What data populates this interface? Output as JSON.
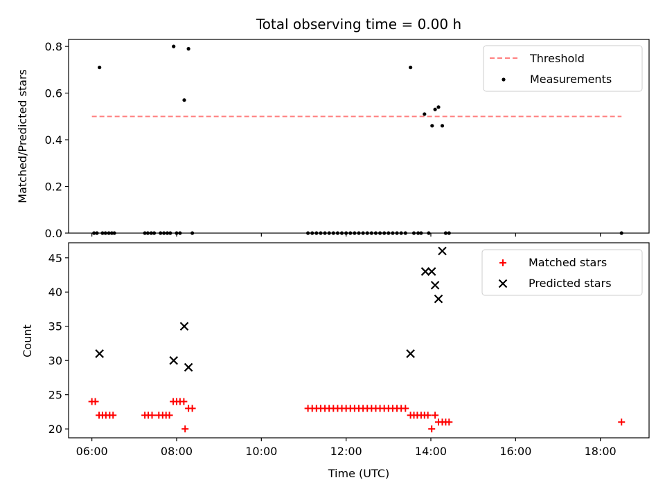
{
  "colors": {
    "threshold": "#ff8080",
    "measurement": "#000000",
    "matched": "#ff0000",
    "predicted": "#000000"
  },
  "chart_data": [
    {
      "type": "scatter",
      "title": "Total observing time = 0.00 h",
      "xlabel": "",
      "ylabel": "Matched/Predicted stars",
      "xlim": [
        5.45,
        19.15
      ],
      "ylim": [
        0.0,
        0.83
      ],
      "x_unit": "hours UTC",
      "x_ticks": [
        6,
        8,
        10,
        12,
        14,
        16,
        18
      ],
      "y_ticks": [
        {
          "value": 0.0,
          "label": "0.0"
        },
        {
          "value": 0.2,
          "label": "0.2"
        },
        {
          "value": 0.4,
          "label": "0.4"
        },
        {
          "value": 0.6,
          "label": "0.6"
        },
        {
          "value": 0.8,
          "label": "0.8"
        }
      ],
      "legend": {
        "placement": "top-right",
        "entries": [
          "Threshold",
          "Measurements"
        ]
      },
      "threshold": {
        "name": "Threshold",
        "value": 0.5,
        "x": [
          6.0,
          18.5
        ],
        "style": "dashed"
      },
      "series": [
        {
          "name": "Measurements",
          "marker": "dot",
          "points": [
            {
              "x": 6.05,
              "y": 0.0
            },
            {
              "x": 6.12,
              "y": 0.0
            },
            {
              "x": 6.18,
              "y": 0.71
            },
            {
              "x": 6.25,
              "y": 0.0
            },
            {
              "x": 6.32,
              "y": 0.0
            },
            {
              "x": 6.4,
              "y": 0.0
            },
            {
              "x": 6.47,
              "y": 0.0
            },
            {
              "x": 6.53,
              "y": 0.0
            },
            {
              "x": 7.25,
              "y": 0.0
            },
            {
              "x": 7.32,
              "y": 0.0
            },
            {
              "x": 7.4,
              "y": 0.0
            },
            {
              "x": 7.47,
              "y": 0.0
            },
            {
              "x": 7.62,
              "y": 0.0
            },
            {
              "x": 7.7,
              "y": 0.0
            },
            {
              "x": 7.78,
              "y": 0.0
            },
            {
              "x": 7.85,
              "y": 0.0
            },
            {
              "x": 7.93,
              "y": 0.8
            },
            {
              "x": 8.0,
              "y": 0.0
            },
            {
              "x": 8.08,
              "y": 0.0
            },
            {
              "x": 8.18,
              "y": 0.57
            },
            {
              "x": 8.28,
              "y": 0.79
            },
            {
              "x": 8.37,
              "y": 0.0
            },
            {
              "x": 11.1,
              "y": 0.0
            },
            {
              "x": 11.2,
              "y": 0.0
            },
            {
              "x": 11.3,
              "y": 0.0
            },
            {
              "x": 11.4,
              "y": 0.0
            },
            {
              "x": 11.5,
              "y": 0.0
            },
            {
              "x": 11.6,
              "y": 0.0
            },
            {
              "x": 11.7,
              "y": 0.0
            },
            {
              "x": 11.8,
              "y": 0.0
            },
            {
              "x": 11.9,
              "y": 0.0
            },
            {
              "x": 12.0,
              "y": 0.0
            },
            {
              "x": 12.1,
              "y": 0.0
            },
            {
              "x": 12.2,
              "y": 0.0
            },
            {
              "x": 12.3,
              "y": 0.0
            },
            {
              "x": 12.4,
              "y": 0.0
            },
            {
              "x": 12.5,
              "y": 0.0
            },
            {
              "x": 12.6,
              "y": 0.0
            },
            {
              "x": 12.7,
              "y": 0.0
            },
            {
              "x": 12.8,
              "y": 0.0
            },
            {
              "x": 12.9,
              "y": 0.0
            },
            {
              "x": 13.0,
              "y": 0.0
            },
            {
              "x": 13.1,
              "y": 0.0
            },
            {
              "x": 13.2,
              "y": 0.0
            },
            {
              "x": 13.3,
              "y": 0.0
            },
            {
              "x": 13.4,
              "y": 0.0
            },
            {
              "x": 13.52,
              "y": 0.71
            },
            {
              "x": 13.6,
              "y": 0.0
            },
            {
              "x": 13.7,
              "y": 0.0
            },
            {
              "x": 13.77,
              "y": 0.0
            },
            {
              "x": 13.85,
              "y": 0.51
            },
            {
              "x": 13.95,
              "y": 0.0
            },
            {
              "x": 14.03,
              "y": 0.46
            },
            {
              "x": 14.1,
              "y": 0.53
            },
            {
              "x": 14.18,
              "y": 0.54
            },
            {
              "x": 14.27,
              "y": 0.46
            },
            {
              "x": 14.35,
              "y": 0.0
            },
            {
              "x": 14.43,
              "y": 0.0
            },
            {
              "x": 18.5,
              "y": 0.0
            }
          ]
        }
      ]
    },
    {
      "type": "scatter",
      "title": "",
      "xlabel": "Time (UTC)",
      "ylabel": "Count",
      "xlim": [
        5.45,
        19.15
      ],
      "ylim": [
        18.7,
        47.2
      ],
      "x_ticks": [
        {
          "value": 6,
          "label": "06:00"
        },
        {
          "value": 8,
          "label": "08:00"
        },
        {
          "value": 10,
          "label": "10:00"
        },
        {
          "value": 12,
          "label": "12:00"
        },
        {
          "value": 14,
          "label": "14:00"
        },
        {
          "value": 16,
          "label": "16:00"
        },
        {
          "value": 18,
          "label": "18:00"
        }
      ],
      "y_ticks": [
        {
          "value": 20,
          "label": "20"
        },
        {
          "value": 25,
          "label": "25"
        },
        {
          "value": 30,
          "label": "30"
        },
        {
          "value": 35,
          "label": "35"
        },
        {
          "value": 40,
          "label": "40"
        },
        {
          "value": 45,
          "label": "45"
        }
      ],
      "legend": {
        "placement": "top-right",
        "entries": [
          "Matched stars",
          "Predicted stars"
        ]
      },
      "series": [
        {
          "name": "Matched stars",
          "marker": "plus",
          "points": [
            {
              "x": 6.0,
              "y": 24
            },
            {
              "x": 6.08,
              "y": 24
            },
            {
              "x": 6.17,
              "y": 22
            },
            {
              "x": 6.25,
              "y": 22
            },
            {
              "x": 6.33,
              "y": 22
            },
            {
              "x": 6.42,
              "y": 22
            },
            {
              "x": 6.5,
              "y": 22
            },
            {
              "x": 7.25,
              "y": 22
            },
            {
              "x": 7.33,
              "y": 22
            },
            {
              "x": 7.42,
              "y": 22
            },
            {
              "x": 7.58,
              "y": 22
            },
            {
              "x": 7.67,
              "y": 22
            },
            {
              "x": 7.75,
              "y": 22
            },
            {
              "x": 7.83,
              "y": 22
            },
            {
              "x": 7.92,
              "y": 24
            },
            {
              "x": 8.0,
              "y": 24
            },
            {
              "x": 8.08,
              "y": 24
            },
            {
              "x": 8.17,
              "y": 24
            },
            {
              "x": 8.2,
              "y": 20
            },
            {
              "x": 8.28,
              "y": 23
            },
            {
              "x": 8.37,
              "y": 23
            },
            {
              "x": 11.1,
              "y": 23
            },
            {
              "x": 11.2,
              "y": 23
            },
            {
              "x": 11.3,
              "y": 23
            },
            {
              "x": 11.4,
              "y": 23
            },
            {
              "x": 11.5,
              "y": 23
            },
            {
              "x": 11.6,
              "y": 23
            },
            {
              "x": 11.7,
              "y": 23
            },
            {
              "x": 11.8,
              "y": 23
            },
            {
              "x": 11.9,
              "y": 23
            },
            {
              "x": 12.0,
              "y": 23
            },
            {
              "x": 12.1,
              "y": 23
            },
            {
              "x": 12.2,
              "y": 23
            },
            {
              "x": 12.3,
              "y": 23
            },
            {
              "x": 12.4,
              "y": 23
            },
            {
              "x": 12.5,
              "y": 23
            },
            {
              "x": 12.6,
              "y": 23
            },
            {
              "x": 12.7,
              "y": 23
            },
            {
              "x": 12.8,
              "y": 23
            },
            {
              "x": 12.9,
              "y": 23
            },
            {
              "x": 13.0,
              "y": 23
            },
            {
              "x": 13.1,
              "y": 23
            },
            {
              "x": 13.2,
              "y": 23
            },
            {
              "x": 13.3,
              "y": 23
            },
            {
              "x": 13.4,
              "y": 23
            },
            {
              "x": 13.52,
              "y": 22
            },
            {
              "x": 13.6,
              "y": 22
            },
            {
              "x": 13.68,
              "y": 22
            },
            {
              "x": 13.77,
              "y": 22
            },
            {
              "x": 13.85,
              "y": 22
            },
            {
              "x": 13.93,
              "y": 22
            },
            {
              "x": 14.02,
              "y": 20
            },
            {
              "x": 14.1,
              "y": 22
            },
            {
              "x": 14.18,
              "y": 21
            },
            {
              "x": 14.27,
              "y": 21
            },
            {
              "x": 14.35,
              "y": 21
            },
            {
              "x": 14.43,
              "y": 21
            },
            {
              "x": 18.5,
              "y": 21
            }
          ]
        },
        {
          "name": "Predicted stars",
          "marker": "x",
          "points": [
            {
              "x": 6.18,
              "y": 31
            },
            {
              "x": 7.93,
              "y": 30
            },
            {
              "x": 8.18,
              "y": 35
            },
            {
              "x": 8.28,
              "y": 29
            },
            {
              "x": 13.52,
              "y": 31
            },
            {
              "x": 13.87,
              "y": 43
            },
            {
              "x": 14.02,
              "y": 43
            },
            {
              "x": 14.1,
              "y": 41
            },
            {
              "x": 14.18,
              "y": 39
            },
            {
              "x": 14.27,
              "y": 46
            }
          ]
        }
      ]
    }
  ]
}
